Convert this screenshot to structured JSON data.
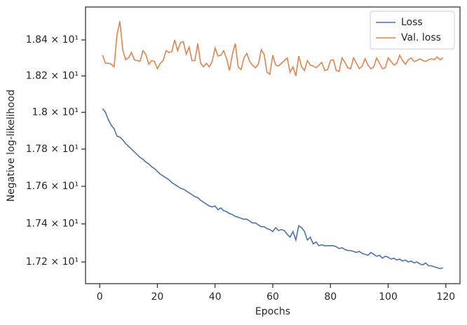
{
  "chart_data": {
    "type": "line",
    "x_label": "Epochs",
    "y_label": "Negative log-likelihood",
    "xlim": [
      -4.9,
      124.9
    ],
    "xticks": [
      0,
      20,
      40,
      60,
      80,
      100,
      120
    ],
    "ylim": [
      17.087,
      18.585
    ],
    "yscale": "log",
    "yticks": [
      {
        "value": 17.2,
        "label": "1.72 × 10¹"
      },
      {
        "value": 17.4,
        "label": "1.74 × 10¹"
      },
      {
        "value": 17.6,
        "label": "1.76 × 10¹"
      },
      {
        "value": 17.8,
        "label": "1.78 × 10¹"
      },
      {
        "value": 18.0,
        "label": "1.8 × 10¹"
      },
      {
        "value": 18.2,
        "label": "1.82 × 10¹"
      },
      {
        "value": 18.4,
        "label": "1.84 × 10¹"
      }
    ],
    "legend": "upper right",
    "x": [
      1,
      2,
      3,
      4,
      5,
      6,
      7,
      8,
      9,
      10,
      11,
      12,
      13,
      14,
      15,
      16,
      17,
      18,
      19,
      20,
      21,
      22,
      23,
      24,
      25,
      26,
      27,
      28,
      29,
      30,
      31,
      32,
      33,
      34,
      35,
      36,
      37,
      38,
      39,
      40,
      41,
      42,
      43,
      44,
      45,
      46,
      47,
      48,
      49,
      50,
      51,
      52,
      53,
      54,
      55,
      56,
      57,
      58,
      59,
      60,
      61,
      62,
      63,
      64,
      65,
      66,
      67,
      68,
      69,
      70,
      71,
      72,
      73,
      74,
      75,
      76,
      77,
      78,
      79,
      80,
      81,
      82,
      83,
      84,
      85,
      86,
      87,
      88,
      89,
      90,
      91,
      92,
      93,
      94,
      95,
      96,
      97,
      98,
      99,
      100,
      101,
      102,
      103,
      104,
      105,
      106,
      107,
      108,
      109,
      110,
      111,
      112,
      113,
      114,
      115,
      116,
      117,
      118,
      119
    ],
    "series": [
      {
        "name": "Loss",
        "color": "#4c72b0",
        "values": [
          18.02,
          18.0,
          17.96,
          17.93,
          17.91,
          17.87,
          17.865,
          17.85,
          17.83,
          17.815,
          17.8,
          17.785,
          17.77,
          17.755,
          17.745,
          17.73,
          17.72,
          17.705,
          17.695,
          17.68,
          17.665,
          17.655,
          17.645,
          17.635,
          17.62,
          17.61,
          17.6,
          17.59,
          17.585,
          17.575,
          17.565,
          17.555,
          17.545,
          17.54,
          17.525,
          17.515,
          17.505,
          17.495,
          17.49,
          17.495,
          17.475,
          17.485,
          17.47,
          17.465,
          17.455,
          17.45,
          17.44,
          17.435,
          17.43,
          17.425,
          17.425,
          17.415,
          17.405,
          17.405,
          17.395,
          17.385,
          17.385,
          17.375,
          17.37,
          17.36,
          17.38,
          17.365,
          17.37,
          17.365,
          17.345,
          17.33,
          17.36,
          17.315,
          17.39,
          17.38,
          17.36,
          17.315,
          17.33,
          17.295,
          17.305,
          17.285,
          17.29,
          17.285,
          17.285,
          17.285,
          17.285,
          17.28,
          17.27,
          17.275,
          17.265,
          17.26,
          17.26,
          17.255,
          17.25,
          17.255,
          17.245,
          17.24,
          17.235,
          17.25,
          17.24,
          17.23,
          17.235,
          17.22,
          17.23,
          17.225,
          17.215,
          17.22,
          17.21,
          17.215,
          17.205,
          17.21,
          17.2,
          17.205,
          17.195,
          17.2,
          17.19,
          17.185,
          17.195,
          17.18,
          17.18,
          17.175,
          17.17,
          17.165,
          17.17
        ]
      },
      {
        "name": "Val. loss",
        "color": "#dd8452",
        "values": [
          18.315,
          18.27,
          18.27,
          18.265,
          18.25,
          18.43,
          18.505,
          18.345,
          18.29,
          18.3,
          18.33,
          18.29,
          18.285,
          18.28,
          18.34,
          18.32,
          18.265,
          18.285,
          18.28,
          18.24,
          18.27,
          18.285,
          18.34,
          18.33,
          18.335,
          18.4,
          18.34,
          18.385,
          18.39,
          18.32,
          18.36,
          18.285,
          18.285,
          18.38,
          18.27,
          18.25,
          18.27,
          18.25,
          18.28,
          18.355,
          18.31,
          18.315,
          18.34,
          18.295,
          18.23,
          18.32,
          18.38,
          18.25,
          18.235,
          18.3,
          18.325,
          18.28,
          18.26,
          18.245,
          18.265,
          18.345,
          18.32,
          18.22,
          18.21,
          18.315,
          18.26,
          18.255,
          18.27,
          18.285,
          18.3,
          18.22,
          18.25,
          18.2,
          18.31,
          18.25,
          18.23,
          18.285,
          18.26,
          18.255,
          18.245,
          18.26,
          18.275,
          18.23,
          18.235,
          18.285,
          18.29,
          18.23,
          18.225,
          18.3,
          18.275,
          18.245,
          18.24,
          18.3,
          18.27,
          18.24,
          18.255,
          18.295,
          18.26,
          18.24,
          18.25,
          18.3,
          18.27,
          18.24,
          18.245,
          18.3,
          18.28,
          18.26,
          18.27,
          18.315,
          18.285,
          18.265,
          18.29,
          18.3,
          18.28,
          18.285,
          18.295,
          18.285,
          18.28,
          18.29,
          18.295,
          18.29,
          18.305,
          18.29,
          18.3
        ]
      }
    ]
  }
}
